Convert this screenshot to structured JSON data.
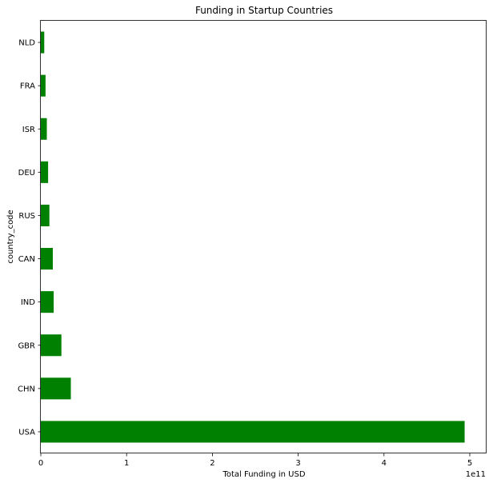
{
  "chart_data": {
    "type": "bar",
    "orientation": "horizontal",
    "title": "Funding in Startup Countries",
    "xlabel": "Total Funding in USD",
    "ylabel": "country_code",
    "x_scale_label": "1e11",
    "categories": [
      "USA",
      "CHN",
      "GBR",
      "IND",
      "CAN",
      "RUS",
      "DEU",
      "ISR",
      "FRA",
      "NLD"
    ],
    "values": [
      494000000000,
      35000000000,
      24000000000,
      15000000000,
      14000000000,
      10000000000,
      8500000000,
      7000000000,
      5500000000,
      4000000000
    ],
    "xlim": [
      0,
      500000000000
    ],
    "xticks": [
      "0",
      "1",
      "2",
      "3",
      "4",
      "5"
    ],
    "bar_color": "#008000",
    "grid": false
  }
}
